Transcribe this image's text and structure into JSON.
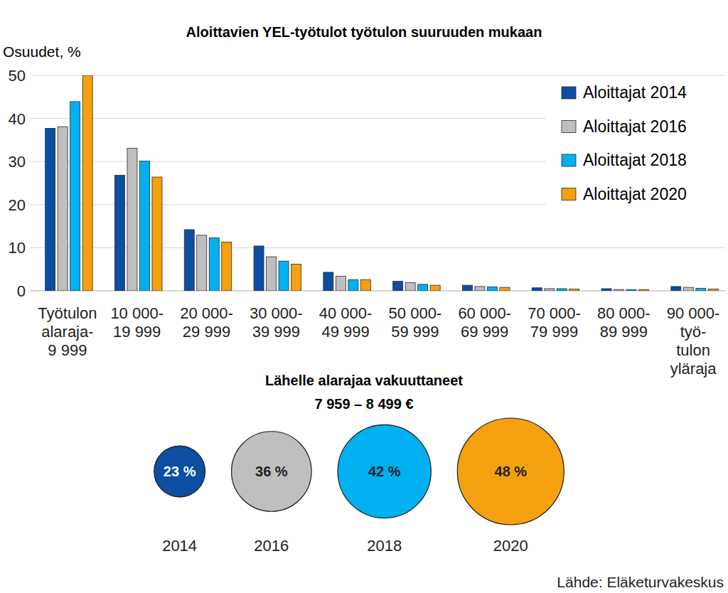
{
  "chart_data": [
    {
      "type": "bar",
      "title": "Aloittavien YEL-työtulot työtulon suuruuden mukaan",
      "y_label": "Osuudet, %",
      "categories": [
        "Työtulon\nalaraja-\n9 999",
        "10 000-\n19 999",
        "20 000-\n29 999",
        "30 000-\n39 999",
        "40 000-\n49 999",
        "50 000-\n59 999",
        "60 000-\n69 999",
        "70 000-\n79 999",
        "80 000-\n89 999",
        "90 000-\ntyö-\ntulon\nyläraja"
      ],
      "series": [
        {
          "name": "Aloittajat 2014",
          "color": "#0b4ea2",
          "values": [
            37.7,
            26.8,
            14.2,
            10.4,
            4.3,
            2.2,
            1.3,
            0.7,
            0.5,
            1.0
          ]
        },
        {
          "name": "Aloittajat 2016",
          "color": "#bfbfbf",
          "values": [
            38.1,
            33.1,
            12.9,
            7.9,
            3.4,
            1.9,
            1.0,
            0.5,
            0.3,
            0.8
          ]
        },
        {
          "name": "Aloittajat 2018",
          "color": "#00b0f0",
          "values": [
            43.9,
            30.1,
            12.3,
            6.9,
            2.6,
            1.5,
            0.9,
            0.5,
            0.3,
            0.6
          ]
        },
        {
          "name": "Aloittajat 2020",
          "color": "#f5a00f",
          "values": [
            50.0,
            26.4,
            11.3,
            6.2,
            2.6,
            1.3,
            0.8,
            0.4,
            0.3,
            0.4
          ]
        }
      ],
      "ylim": [
        0,
        50
      ],
      "yticks": [
        0,
        10,
        20,
        30,
        40,
        50
      ],
      "grid": true,
      "legend": "top-right"
    },
    {
      "type": "bubble",
      "title": "Lähelle alarajaa vakuuttaneet",
      "subtitle": "7 959 – 8 499 €",
      "categories": [
        "2014",
        "2016",
        "2018",
        "2020"
      ],
      "values": [
        23,
        36,
        42,
        48
      ],
      "value_labels": [
        "23 %",
        "36 %",
        "42 %",
        "48 %"
      ],
      "colors": [
        "#0b4ea2",
        "#bfbfbf",
        "#00b0f0",
        "#f5a00f"
      ],
      "data_labels": true,
      "annotation": "Lähde: Eläketurvakeskus"
    }
  ]
}
